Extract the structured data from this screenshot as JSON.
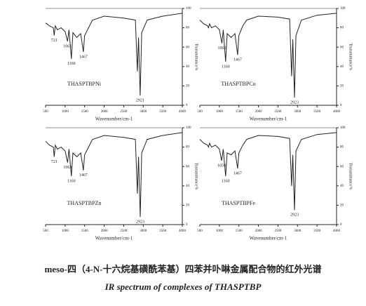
{
  "chart_data": [
    {
      "type": "line",
      "sample": "THASPTBPNi",
      "x_label": "Wavenumber/cm-1",
      "y_label": "Transmittance%",
      "x": [
        500,
        600,
        700,
        721,
        750,
        800,
        900,
        1000,
        1061,
        1100,
        1160,
        1200,
        1300,
        1400,
        1467,
        1500,
        1600,
        1700,
        2000,
        2500,
        2800,
        2850,
        2880,
        2921,
        2960,
        3100,
        3500,
        4000
      ],
      "values": [
        85,
        82,
        80,
        72,
        82,
        78,
        80,
        76,
        66,
        78,
        48,
        75,
        70,
        74,
        55,
        72,
        80,
        88,
        92,
        90,
        88,
        35,
        70,
        10,
        75,
        88,
        92,
        95
      ],
      "peaks": [
        721,
        1160,
        1467,
        1061,
        2921
      ],
      "color": "#222",
      "xlim": [
        500,
        4000
      ],
      "xticks": [
        500,
        1000,
        1500,
        2000,
        2500,
        3000,
        3500,
        4000
      ],
      "ylim": [
        0,
        100
      ],
      "yticks": [
        0,
        20,
        40,
        60,
        80,
        100
      ]
    },
    {
      "type": "line",
      "sample": "THASPTBPCo",
      "x_label": "Wavenumber/cm-1",
      "y_label": "Transmittance%",
      "x": [
        500,
        600,
        700,
        721,
        750,
        800,
        900,
        1000,
        1065,
        1100,
        1160,
        1200,
        1300,
        1400,
        1467,
        1500,
        1600,
        1700,
        2000,
        2500,
        2800,
        2850,
        2880,
        2923,
        2960,
        3100,
        3500,
        4000
      ],
      "values": [
        88,
        84,
        82,
        80,
        84,
        80,
        82,
        78,
        64,
        78,
        45,
        74,
        70,
        74,
        52,
        72,
        82,
        88,
        92,
        91,
        89,
        30,
        68,
        8,
        72,
        88,
        93,
        95
      ],
      "peaks": [
        1160,
        1467,
        1065,
        2923
      ],
      "color": "#222",
      "xlim": [
        500,
        4000
      ],
      "xticks": [
        500,
        1000,
        1500,
        2000,
        2500,
        3000,
        3500,
        4000
      ],
      "ylim": [
        0,
        100
      ],
      "yticks": [
        0,
        20,
        40,
        60,
        80,
        100
      ]
    },
    {
      "type": "line",
      "sample": "THASPTBPZn",
      "x_label": "Wavenumber/cm-1",
      "y_label": "Transmittance%",
      "x": [
        500,
        600,
        700,
        721,
        750,
        800,
        900,
        1000,
        1063,
        1100,
        1160,
        1200,
        1300,
        1400,
        1467,
        1500,
        1600,
        1700,
        2000,
        2500,
        2800,
        2850,
        2880,
        2923,
        2960,
        3100,
        3500,
        4000
      ],
      "values": [
        86,
        82,
        80,
        70,
        82,
        78,
        80,
        76,
        64,
        78,
        50,
        74,
        70,
        74,
        56,
        72,
        80,
        88,
        92,
        90,
        88,
        32,
        70,
        8,
        74,
        88,
        92,
        95
      ],
      "peaks": [
        721,
        1160,
        1467,
        1063,
        2923
      ],
      "color": "#222",
      "xlim": [
        500,
        4000
      ],
      "xticks": [
        500,
        1000,
        1500,
        2000,
        2500,
        3000,
        3500,
        4000
      ],
      "ylim": [
        0,
        100
      ],
      "yticks": [
        0,
        20,
        40,
        60,
        80,
        100
      ]
    },
    {
      "type": "line",
      "sample": "THASPTBPFe",
      "x_label": "Wavenumber/cm-1",
      "y_label": "Transmittance%",
      "x": [
        500,
        600,
        700,
        721,
        750,
        800,
        900,
        1000,
        1059,
        1100,
        1160,
        1200,
        1300,
        1400,
        1467,
        1500,
        1600,
        1700,
        2000,
        2500,
        2800,
        2850,
        2880,
        2923,
        2960,
        3100,
        3500,
        4000
      ],
      "values": [
        88,
        84,
        82,
        80,
        84,
        80,
        82,
        78,
        66,
        78,
        50,
        74,
        72,
        76,
        58,
        74,
        82,
        88,
        92,
        91,
        89,
        40,
        72,
        15,
        76,
        88,
        93,
        95
      ],
      "peaks": [
        1160,
        1467,
        1059,
        2923
      ],
      "color": "#222",
      "xlim": [
        500,
        4000
      ],
      "xticks": [
        500,
        1000,
        1500,
        2000,
        2500,
        3000,
        3500,
        4000
      ],
      "ylim": [
        0,
        100
      ],
      "yticks": [
        0,
        20,
        40,
        60,
        80,
        100
      ]
    }
  ],
  "caption": {
    "zh": "meso-四（4-N-十六烷基磺酰苯基）四苯并卟啉金属配合物的红外光谱",
    "en": "IR spectrum of complexes of THASPTBP"
  }
}
